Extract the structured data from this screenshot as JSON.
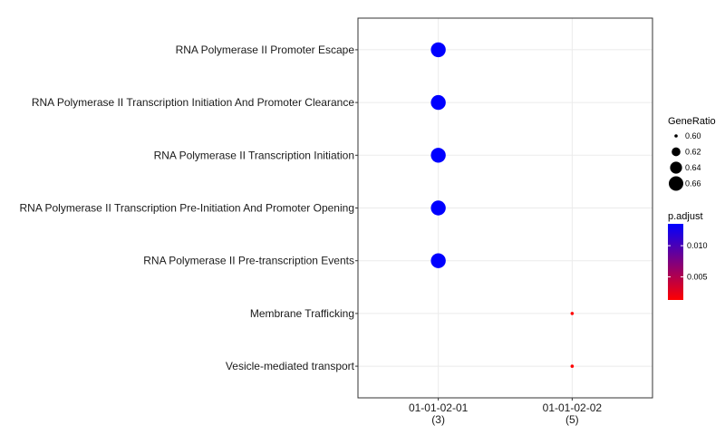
{
  "chart_data": {
    "type": "scatter",
    "title": "",
    "xlabel": "",
    "ylabel": "",
    "x_categories": [
      {
        "label": "01-01-02-01",
        "count": "(3)"
      },
      {
        "label": "01-01-02-02",
        "count": "(5)"
      }
    ],
    "y_categories": [
      "RNA Polymerase II Promoter Escape",
      "RNA Polymerase II Transcription Initiation And Promoter Clearance",
      "RNA Polymerase II Transcription Initiation",
      "RNA Polymerase II Transcription Pre-Initiation And Promoter Opening",
      "RNA Polymerase II Pre-transcription Events",
      "Membrane Trafficking",
      "Vesicle-mediated transport"
    ],
    "points": [
      {
        "x": "01-01-02-01",
        "y": "RNA Polymerase II Promoter Escape",
        "gene_ratio": 0.6667,
        "p_adjust": 0.0135
      },
      {
        "x": "01-01-02-01",
        "y": "RNA Polymerase II Transcription Initiation And Promoter Clearance",
        "gene_ratio": 0.6667,
        "p_adjust": 0.0135
      },
      {
        "x": "01-01-02-01",
        "y": "RNA Polymerase II Transcription Initiation",
        "gene_ratio": 0.6667,
        "p_adjust": 0.0135
      },
      {
        "x": "01-01-02-01",
        "y": "RNA Polymerase II Transcription Pre-Initiation And Promoter Opening",
        "gene_ratio": 0.6667,
        "p_adjust": 0.0135
      },
      {
        "x": "01-01-02-01",
        "y": "RNA Polymerase II Pre-transcription Events",
        "gene_ratio": 0.6667,
        "p_adjust": 0.0135
      },
      {
        "x": "01-01-02-02",
        "y": "Membrane Trafficking",
        "gene_ratio": 0.6,
        "p_adjust": 0.0013
      },
      {
        "x": "01-01-02-02",
        "y": "Vesicle-mediated transport",
        "gene_ratio": 0.6,
        "p_adjust": 0.0013
      }
    ],
    "size_legend": {
      "title": "GeneRatio",
      "values": [
        0.6,
        0.62,
        0.64,
        0.66
      ],
      "labels": [
        "0.60",
        "0.62",
        "0.64",
        "0.66"
      ]
    },
    "color_legend": {
      "title": "p.adjust",
      "range": [
        0.0013,
        0.0135
      ],
      "ticks": [
        0.005,
        0.01
      ],
      "tick_labels": [
        "0.005",
        "0.010"
      ],
      "low_color": "#ff0000",
      "high_color": "#0000ff"
    },
    "grid": true,
    "legend_position": "right",
    "colors": {
      "grid": "#ebebeb",
      "panel_border": "#333333"
    }
  }
}
